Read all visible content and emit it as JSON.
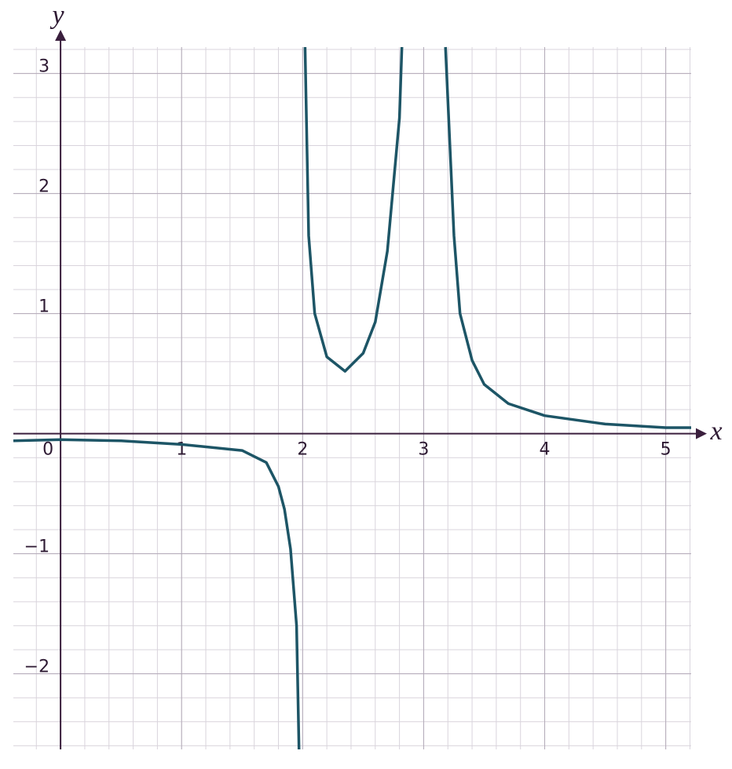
{
  "chart_data": {
    "type": "line",
    "x_label": "x",
    "y_label": "y",
    "x": [
      -0.39,
      0,
      0.5,
      1,
      1.5,
      1.7,
      1.8,
      1.85,
      1.9,
      1.95,
      1.97,
      null,
      2.02,
      2.05,
      2.1,
      2.2,
      2.35,
      2.5,
      2.6,
      2.7,
      2.8,
      2.82,
      null,
      3.18,
      3.25,
      3.3,
      3.4,
      3.5,
      3.7,
      4,
      4.5,
      5,
      5.21
    ],
    "series": [
      {
        "name": "y",
        "color": "#1d5566",
        "values": [
          -0.06,
          -0.05,
          -0.06,
          -0.09,
          -0.14,
          -0.24,
          -0.44,
          -0.63,
          -0.96,
          -1.6,
          -2.63,
          null,
          3.22,
          1.65,
          1.0,
          0.64,
          0.52,
          0.67,
          0.93,
          1.52,
          2.63,
          3.22,
          null,
          3.22,
          1.65,
          1.0,
          0.61,
          0.41,
          0.25,
          0.15,
          0.08,
          0.05,
          0.05
        ]
      }
    ],
    "xlim": [
      -0.39,
      5.21
    ],
    "ylim": [
      -2.63,
      3.22
    ],
    "xticks": [
      0,
      1,
      2,
      3,
      4,
      5
    ],
    "yticks": [
      {
        "value": -2,
        "label": "−2"
      },
      {
        "value": -1,
        "label": "−1"
      },
      1,
      2,
      3
    ],
    "grid": true
  }
}
